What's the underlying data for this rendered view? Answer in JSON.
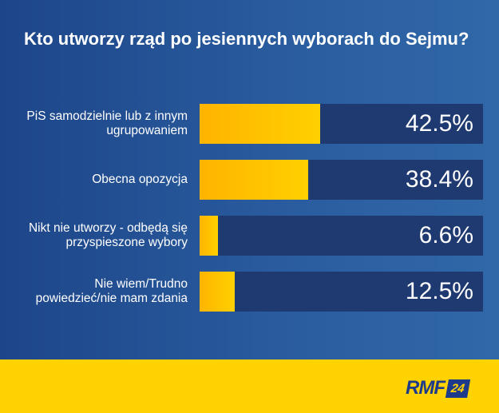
{
  "chart_data": {
    "type": "bar",
    "orientation": "horizontal",
    "title": "Kto utworzy rząd po jesiennych wyborach do Sejmu?",
    "categories": [
      "PiS samodzielnie lub z innym ugrupowaniem",
      "Obecna opozycja",
      "Nikt nie utworzy - odbędą się przyspieszone wybory",
      "Nie wiem/Trudno powiedzieć/nie mam zdania"
    ],
    "values": [
      42.5,
      38.4,
      6.6,
      12.5
    ],
    "value_labels": [
      "42.5%",
      "38.4%",
      "6.6%",
      "12.5%"
    ],
    "xlim": [
      0,
      100
    ],
    "grid": false,
    "colors": {
      "bar": "#ffc400",
      "track": "#1e3a70",
      "background": "#2a5da0",
      "footer": "#ffd200"
    }
  },
  "logo": {
    "text": "RMF",
    "badge": "24"
  }
}
